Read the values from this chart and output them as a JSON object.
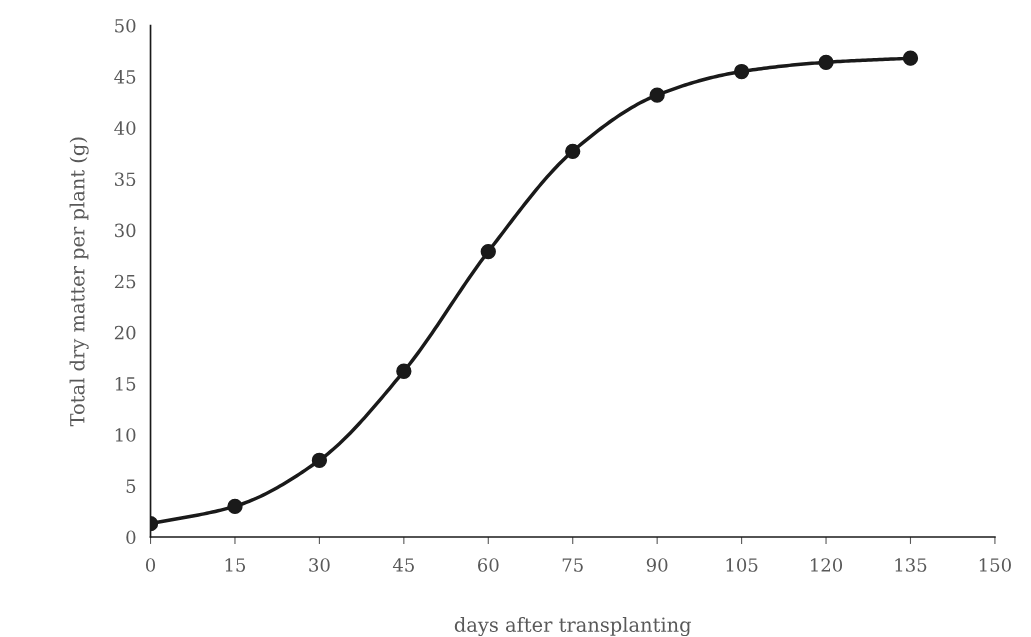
{
  "chart_data": {
    "type": "line",
    "xlabel": "days after transplanting",
    "ylabel": "Total dry matter per plant (g)",
    "x": [
      0,
      15,
      30,
      45,
      60,
      75,
      90,
      105,
      120,
      135
    ],
    "series": [
      {
        "color": "#1a1a1a",
        "values": [
          1.3,
          3.0,
          7.5,
          16.2,
          27.9,
          37.7,
          43.2,
          45.5,
          46.4,
          46.8
        ]
      }
    ],
    "xlim": [
      0,
      150
    ],
    "xticks": [
      0,
      15,
      30,
      45,
      60,
      75,
      90,
      105,
      120,
      135,
      150
    ],
    "ylim": [
      0,
      50
    ],
    "yticks": [
      0,
      5,
      10,
      15,
      20,
      25,
      30,
      35,
      40,
      45,
      50
    ],
    "marker": "circle",
    "line_style": "solid",
    "grid": false,
    "legend": false
  }
}
